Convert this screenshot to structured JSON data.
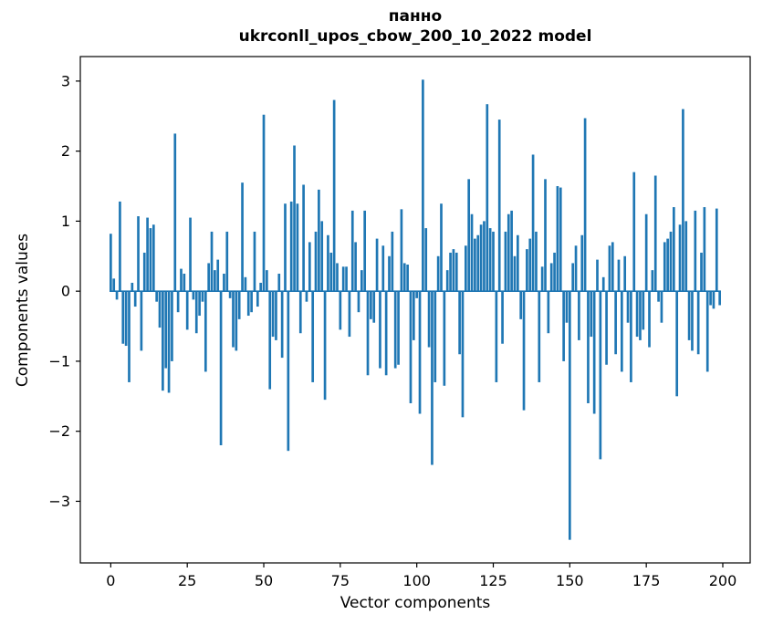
{
  "title": "панно",
  "subtitle": "ukrconll_upos_cbow_200_10_2022 model",
  "chart_data": {
    "type": "bar",
    "title": "панно",
    "subtitle": "ukrconll_upos_cbow_200_10_2022 model",
    "xlabel": "Vector components",
    "ylabel": "Components values",
    "bar_color": "#1f77b4",
    "spine_color": "#000000",
    "xlim": [
      -9.95,
      208.95
    ],
    "ylim": [
      -3.88,
      3.35
    ],
    "grid": false,
    "legend": "none",
    "xticks": [
      0,
      25,
      50,
      75,
      100,
      125,
      150,
      175,
      200
    ],
    "xtick_labels": [
      "0",
      "25",
      "50",
      "75",
      "100",
      "125",
      "150",
      "175",
      "200"
    ],
    "yticks": [
      -3,
      -2,
      -1,
      0,
      1,
      2,
      3
    ],
    "ytick_labels": [
      "−3",
      "−2",
      "−1",
      "0",
      "1",
      "2",
      "3"
    ],
    "x_start": 0,
    "bar_width": 0.8,
    "values": [
      0.82,
      0.18,
      -0.12,
      1.28,
      -0.75,
      -0.78,
      -1.3,
      0.12,
      -0.22,
      1.07,
      -0.85,
      0.55,
      1.05,
      0.9,
      0.95,
      -0.15,
      -0.52,
      -1.42,
      -1.1,
      -1.45,
      -1.0,
      2.25,
      -0.3,
      0.32,
      0.25,
      -0.55,
      1.05,
      -0.12,
      -0.6,
      -0.35,
      -0.15,
      -1.15,
      0.4,
      0.85,
      0.3,
      0.45,
      -2.2,
      0.25,
      0.85,
      -0.1,
      -0.8,
      -0.85,
      -0.4,
      1.55,
      0.2,
      -0.35,
      -0.3,
      0.85,
      -0.22,
      0.12,
      2.52,
      0.3,
      -1.4,
      -0.65,
      -0.7,
      0.25,
      -0.95,
      1.25,
      -2.28,
      1.28,
      2.08,
      1.25,
      -0.6,
      1.52,
      -0.15,
      0.7,
      -1.3,
      0.85,
      1.45,
      1.0,
      -1.55,
      0.8,
      0.55,
      2.73,
      0.4,
      -0.55,
      0.35,
      0.35,
      -0.65,
      1.15,
      0.7,
      -0.3,
      0.3,
      1.15,
      -1.2,
      -0.4,
      -0.45,
      0.75,
      -1.1,
      0.65,
      -1.2,
      0.5,
      0.85,
      -1.1,
      -1.05,
      1.17,
      0.4,
      0.38,
      -1.6,
      -0.7,
      -0.1,
      -1.75,
      3.02,
      0.9,
      -0.8,
      -2.48,
      -1.3,
      0.5,
      1.25,
      -1.35,
      0.3,
      0.55,
      0.6,
      0.55,
      -0.9,
      -1.8,
      0.65,
      1.6,
      1.1,
      0.75,
      0.8,
      0.95,
      1.0,
      2.67,
      0.9,
      0.85,
      -1.3,
      2.45,
      -0.75,
      0.85,
      1.1,
      1.15,
      0.5,
      0.8,
      -0.4,
      -1.7,
      0.6,
      0.75,
      1.95,
      0.85,
      -1.3,
      0.35,
      1.6,
      -0.6,
      0.4,
      0.55,
      1.5,
      1.48,
      -1.0,
      -0.45,
      -3.55,
      0.4,
      0.65,
      -0.7,
      0.8,
      2.47,
      -1.6,
      -0.65,
      -1.75,
      0.45,
      -2.4,
      0.2,
      -1.05,
      0.65,
      0.7,
      -0.9,
      0.45,
      -1.15,
      0.5,
      -0.45,
      -1.3,
      1.7,
      -0.65,
      -0.7,
      -0.55,
      1.1,
      -0.8,
      0.3,
      1.65,
      -0.15,
      -0.45,
      0.7,
      0.75,
      0.85,
      1.2,
      -1.5,
      0.95,
      2.6,
      1.0,
      -0.7,
      -0.85,
      1.15,
      -0.9,
      0.55,
      1.2,
      -1.15,
      -0.2,
      -0.25,
      1.18,
      -0.2
    ]
  }
}
